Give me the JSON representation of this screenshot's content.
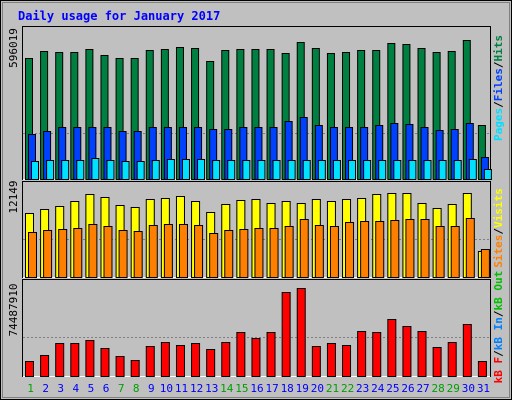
{
  "chart_data": [
    {
      "type": "bar",
      "title": "Daily usage for January 2017",
      "panel": "hits-files-pages",
      "ylabel_max": "596019",
      "legend": [
        "Pages",
        "Files",
        "Hits"
      ],
      "categories": [
        "1",
        "2",
        "3",
        "4",
        "5",
        "6",
        "7",
        "8",
        "9",
        "10",
        "11",
        "12",
        "13",
        "14",
        "15",
        "16",
        "17",
        "18",
        "19",
        "20",
        "21",
        "22",
        "23",
        "24",
        "25",
        "26",
        "27",
        "28",
        "29",
        "30",
        "31"
      ],
      "weekend_days": [
        "1",
        "7",
        "8",
        "14",
        "15",
        "21",
        "22",
        "28",
        "29"
      ],
      "ylim": [
        0,
        596019
      ],
      "series": [
        {
          "name": "Hits",
          "values": [
            530000,
            560000,
            555000,
            555000,
            570000,
            545000,
            530000,
            530000,
            565000,
            570000,
            578000,
            575000,
            515000,
            566000,
            570000,
            568000,
            570000,
            552000,
            598000,
            572000,
            550000,
            556000,
            565000,
            567000,
            595000,
            590000,
            573000,
            555000,
            562000,
            610000,
            235000
          ]
        },
        {
          "name": "Files",
          "values": [
            195000,
            208000,
            227000,
            227000,
            227000,
            227000,
            211000,
            211000,
            226000,
            229000,
            229000,
            229000,
            219000,
            219000,
            227000,
            227000,
            227000,
            256000,
            273000,
            236000,
            227000,
            227000,
            227000,
            236000,
            247000,
            240000,
            227000,
            216000,
            218000,
            244000,
            95000
          ]
        },
        {
          "name": "Pages",
          "values": [
            78000,
            82000,
            82000,
            82000,
            91000,
            83000,
            80000,
            80000,
            85000,
            86000,
            86000,
            86000,
            82000,
            82000,
            83000,
            83000,
            83000,
            83000,
            83000,
            82000,
            82000,
            82000,
            82000,
            82000,
            82000,
            82000,
            82000,
            82000,
            82000,
            88000,
            42000
          ]
        }
      ]
    },
    {
      "type": "bar",
      "panel": "visits-sites",
      "ylabel_max": "12149",
      "legend": [
        "Sites",
        "Visits"
      ],
      "categories": [
        "1",
        "2",
        "3",
        "4",
        "5",
        "6",
        "7",
        "8",
        "9",
        "10",
        "11",
        "12",
        "13",
        "14",
        "15",
        "16",
        "17",
        "18",
        "19",
        "20",
        "21",
        "22",
        "23",
        "24",
        "25",
        "26",
        "27",
        "28",
        "29",
        "30",
        "31"
      ],
      "ylim": [
        0,
        12149
      ],
      "series": [
        {
          "name": "Visits",
          "values": [
            9000,
            9600,
            10000,
            10600,
            11600,
            11300,
            10100,
            9800,
            10900,
            11100,
            11400,
            10700,
            9100,
            10300,
            10800,
            10900,
            10400,
            10700,
            10400,
            10900,
            10700,
            11000,
            11100,
            11600,
            11800,
            11800,
            10400,
            9700,
            10200,
            11800,
            3600
          ]
        },
        {
          "name": "Sites",
          "values": [
            6300,
            6600,
            6700,
            6900,
            7400,
            7100,
            6600,
            6400,
            7300,
            7400,
            7500,
            7300,
            6200,
            6600,
            6800,
            6900,
            6900,
            7100,
            8100,
            7300,
            7100,
            7700,
            7900,
            7800,
            8000,
            8200,
            8100,
            7200,
            7200,
            8300,
            4000
          ]
        }
      ]
    },
    {
      "type": "bar",
      "panel": "kbytes",
      "ylabel_max": "74487910",
      "legend": [
        "KB F",
        "KB In",
        "KB Out"
      ],
      "categories": [
        "1",
        "2",
        "3",
        "4",
        "5",
        "6",
        "7",
        "8",
        "9",
        "10",
        "11",
        "12",
        "13",
        "14",
        "15",
        "16",
        "17",
        "18",
        "19",
        "20",
        "21",
        "22",
        "23",
        "24",
        "25",
        "26",
        "27",
        "28",
        "29",
        "30",
        "31"
      ],
      "ylim": [
        0,
        74487910
      ],
      "series": [
        {
          "name": "KB F",
          "values": [
            13000000,
            18000000,
            28000000,
            28000000,
            31000000,
            24000000,
            17000000,
            14000000,
            26000000,
            29000000,
            27000000,
            28000000,
            23000000,
            29000000,
            38000000,
            33000000,
            38000000,
            72000000,
            76000000,
            26000000,
            28000000,
            27000000,
            39000000,
            38000000,
            49000000,
            43000000,
            39000000,
            25000000,
            29000000,
            45000000,
            13000000
          ]
        }
      ]
    }
  ],
  "colors": {
    "background": "#c0c0c0",
    "border": "#000000",
    "title": "#0000ff",
    "weekday_label": "#0000ff",
    "weekend_label": "#00a000",
    "hits": "#008040",
    "files": "#0040ff",
    "pages": "#00e0ff",
    "visits": "#ffff00",
    "sites": "#ff8000",
    "kbytes": "#ff0000",
    "kb_in": "#0080ff",
    "kb_out": "#00c000"
  },
  "legend_text": {
    "pages": "Pages",
    "files": "Files",
    "hits": "Hits",
    "sites": "Sites",
    "visits": "Visits",
    "kb_f": "kB F",
    "kb_in": "kB In",
    "kb_out": "kB Out",
    "sep": "/"
  }
}
